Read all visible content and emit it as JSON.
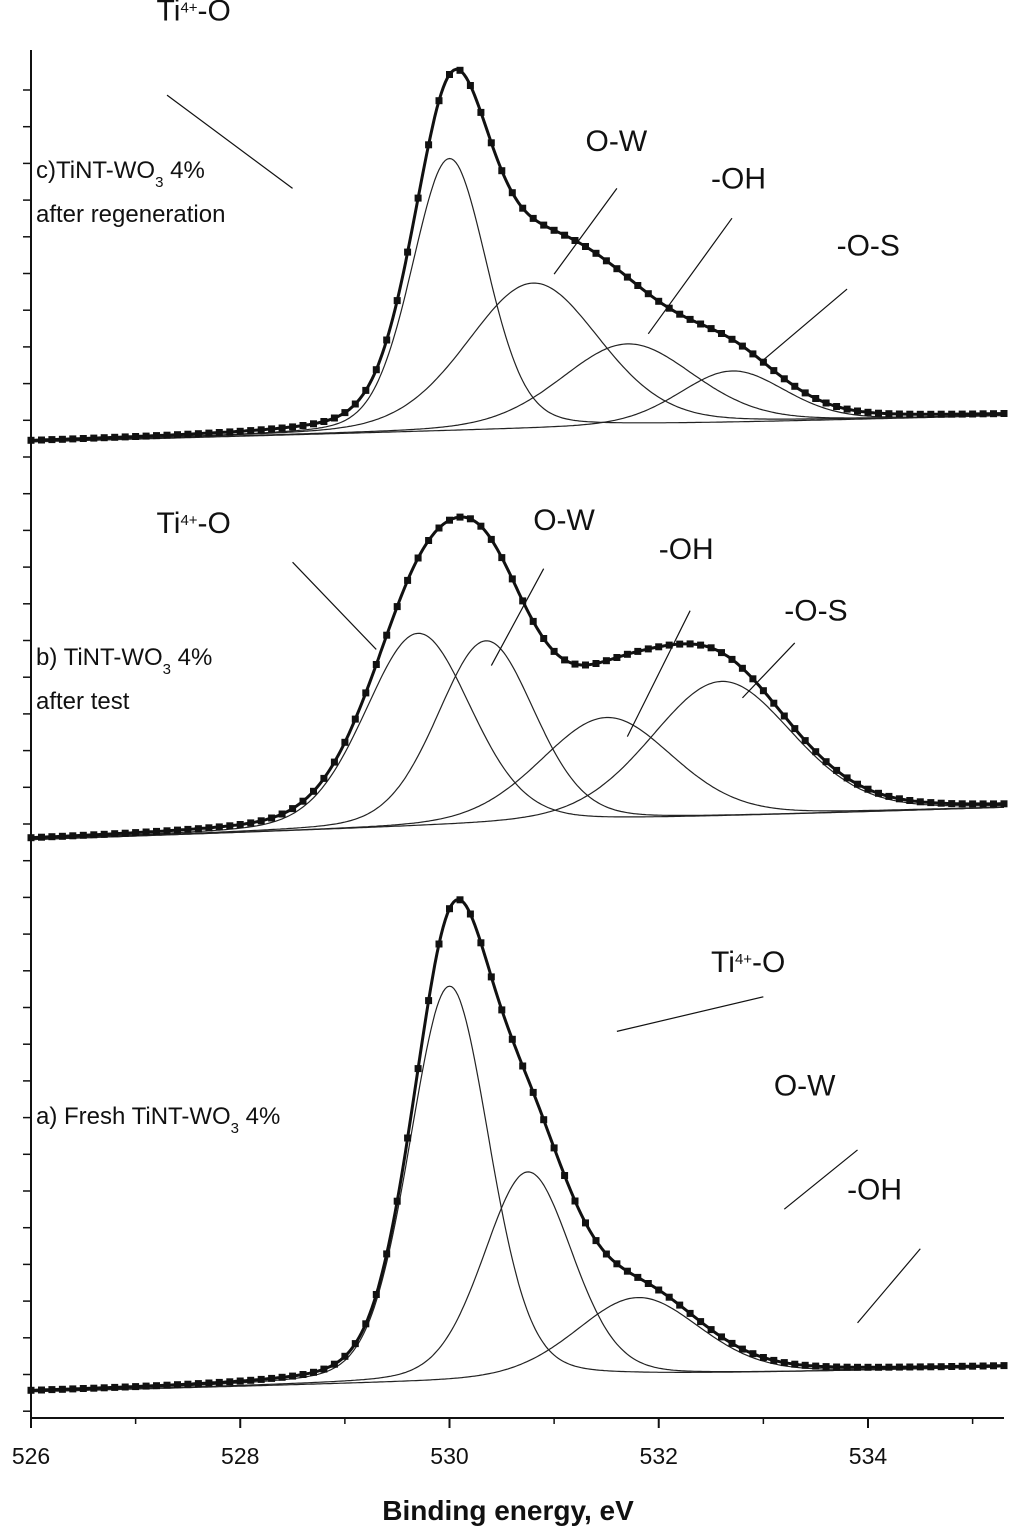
{
  "chart_data": {
    "type": "line",
    "xlabel": "Binding energy, eV",
    "xlim": [
      526,
      535.3
    ],
    "x_ticks": [
      "526",
      "528",
      "530",
      "532",
      "534"
    ],
    "grid": false,
    "panels": [
      {
        "label_lines": [
          "c)TiNT-WO|3| 4%",
          "after regeneration"
        ],
        "baseline": [
          0.0,
          0.07
        ],
        "envelope": {
          "x0": 529.6,
          "x1": 530.6,
          "peak_x": 530.15,
          "height": 1.0
        },
        "components": [
          {
            "name": "Ti4+-O",
            "center": 530.0,
            "height": 0.73,
            "width": 0.85
          },
          {
            "name": "O-W",
            "center": 530.8,
            "height": 0.39,
            "width": 1.5
          },
          {
            "name": "-OH",
            "center": 531.7,
            "height": 0.22,
            "width": 1.5
          },
          {
            "name": "-O-S",
            "center": 532.7,
            "height": 0.14,
            "width": 1.2
          }
        ],
        "annotations": [
          {
            "text": "Ti|4+|-O",
            "x": 527.2,
            "y": 1.13,
            "lx1": 527.3,
            "ly1": 0.93,
            "lx2": 528.5,
            "ly2": 0.68
          },
          {
            "text": "O-W",
            "x": 531.3,
            "y": 0.78,
            "lx1": 531.6,
            "ly1": 0.68,
            "lx2": 531.0,
            "ly2": 0.45
          },
          {
            "text": "-OH",
            "x": 532.5,
            "y": 0.68,
            "lx1": 532.7,
            "ly1": 0.6,
            "lx2": 531.9,
            "ly2": 0.29
          },
          {
            "text": "-O-S",
            "x": 533.7,
            "y": 0.5,
            "lx1": 533.8,
            "ly1": 0.41,
            "lx2": 533.0,
            "ly2": 0.22
          }
        ]
      },
      {
        "label_lines": [
          "b) TiNT-WO|3| 4%",
          "after test"
        ],
        "baseline": [
          0.0,
          0.1
        ],
        "envelope": {
          "x0": 529.6,
          "x1": 530.4,
          "peak_x": 530.1,
          "height": 1.0
        },
        "components": [
          {
            "name": "Ti4+-O",
            "center": 529.7,
            "height": 0.6,
            "width": 1.2
          },
          {
            "name": "O-W",
            "center": 530.35,
            "height": 0.57,
            "width": 1.1
          },
          {
            "name": "-OH",
            "center": 531.5,
            "height": 0.32,
            "width": 1.5
          },
          {
            "name": "-O-S",
            "center": 532.6,
            "height": 0.42,
            "width": 1.6
          }
        ],
        "annotations": [
          {
            "text": "Ti|4+|-O",
            "x": 527.2,
            "y": 0.95,
            "lx1": 528.5,
            "ly1": 0.86,
            "lx2": 529.3,
            "ly2": 0.59
          },
          {
            "text": "O-W",
            "x": 530.8,
            "y": 0.96,
            "lx1": 530.9,
            "ly1": 0.84,
            "lx2": 530.4,
            "ly2": 0.54
          },
          {
            "text": "-OH",
            "x": 532.0,
            "y": 0.87,
            "lx1": 532.3,
            "ly1": 0.71,
            "lx2": 531.7,
            "ly2": 0.32
          },
          {
            "text": "-O-S",
            "x": 533.2,
            "y": 0.68,
            "lx1": 533.3,
            "ly1": 0.61,
            "lx2": 532.8,
            "ly2": 0.44
          }
        ]
      },
      {
        "label_lines": [
          "a) Fresh TiNT-WO|3| 4%"
        ],
        "baseline": [
          0.0,
          0.05
        ],
        "envelope": {
          "x0": 529.55,
          "x1": 530.55,
          "peak_x": 530.2,
          "height": 1.0
        },
        "components": [
          {
            "name": "Ti4+-O",
            "center": 530.0,
            "height": 0.8,
            "width": 0.9
          },
          {
            "name": "O-W",
            "center": 530.75,
            "height": 0.42,
            "width": 1.0
          },
          {
            "name": "-OH",
            "center": 531.8,
            "height": 0.16,
            "width": 1.4
          }
        ],
        "annotations": [
          {
            "text": "Ti|4+|-O",
            "x": 532.5,
            "y": 0.85,
            "lx1": 533.0,
            "ly1": 0.8,
            "lx2": 531.6,
            "ly2": 0.73
          },
          {
            "text": "O-W",
            "x": 533.1,
            "y": 0.6,
            "lx1": 533.9,
            "ly1": 0.49,
            "lx2": 533.2,
            "ly2": 0.37
          },
          {
            "text": "-OH",
            "x": 533.8,
            "y": 0.39,
            "lx1": 534.5,
            "ly1": 0.29,
            "lx2": 533.9,
            "ly2": 0.14
          }
        ]
      }
    ]
  }
}
